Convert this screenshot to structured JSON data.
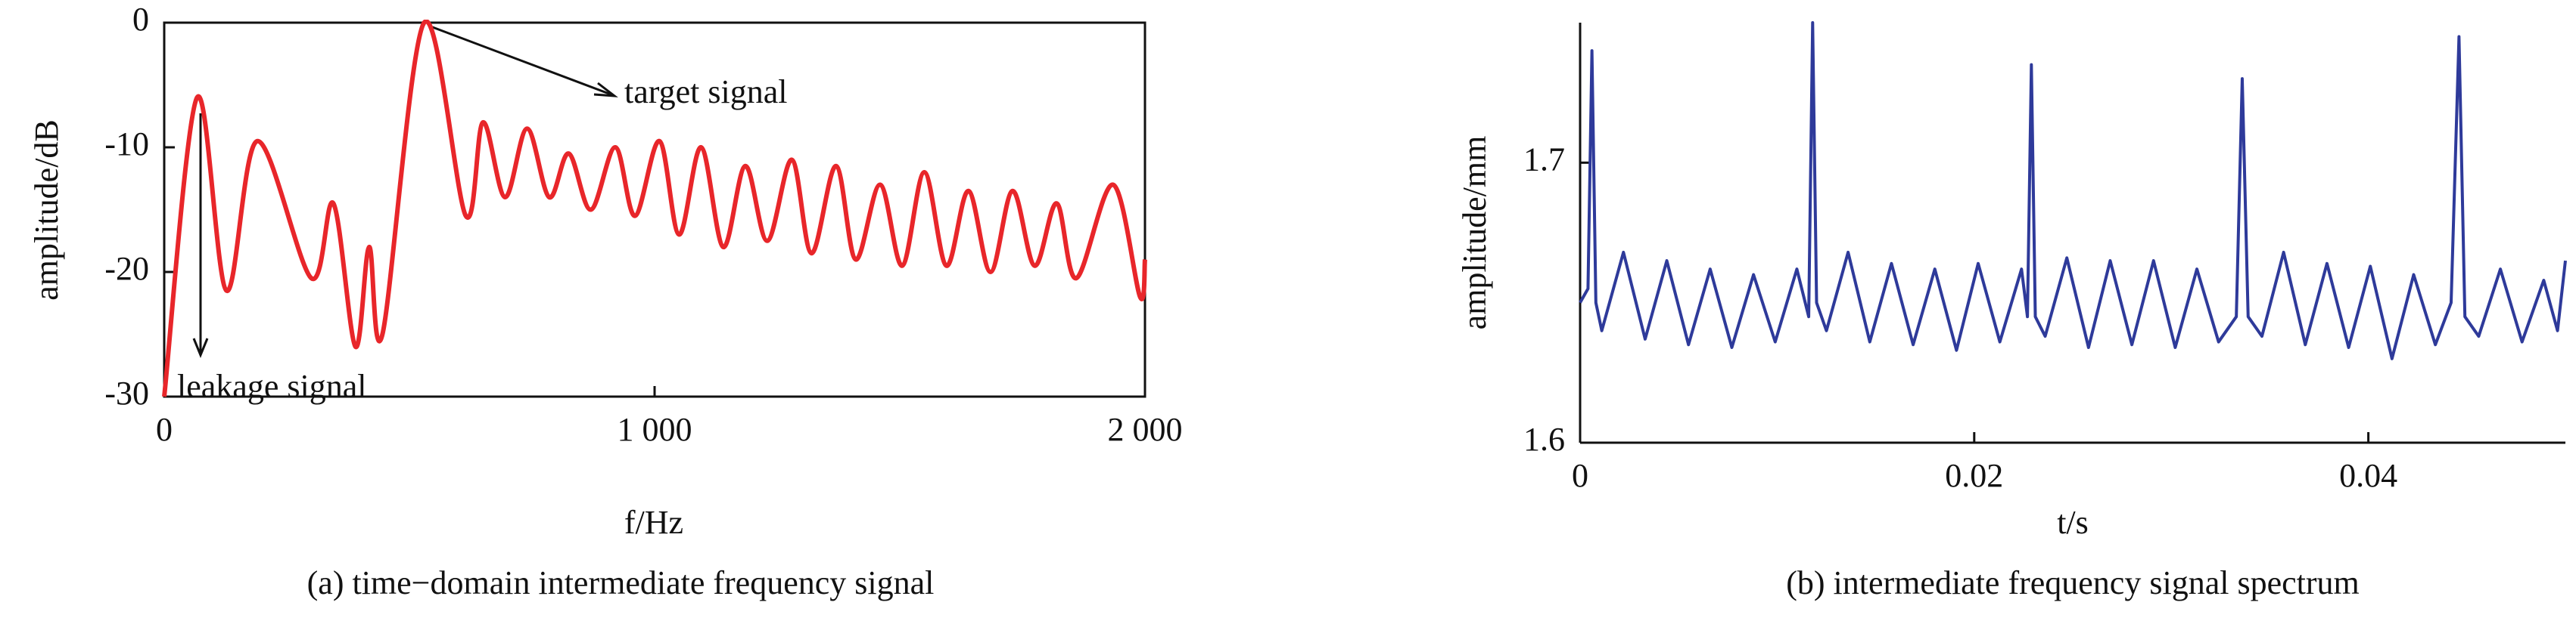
{
  "chart_data": [
    {
      "type": "line",
      "caption": "(a) time−domain intermediate frequency signal",
      "xlabel": "f/Hz",
      "ylabel": "amplitude/dB",
      "annotations": [
        "target signal",
        "leakage signal"
      ],
      "color": "#e8262a",
      "x": [
        0,
        67,
        127,
        190,
        300,
        345,
        390,
        418,
        445,
        530,
        615,
        650,
        695,
        740,
        785,
        825,
        870,
        920,
        960,
        1010,
        1050,
        1095,
        1140,
        1185,
        1230,
        1280,
        1320,
        1370,
        1410,
        1460,
        1505,
        1550,
        1595,
        1640,
        1685,
        1730,
        1775,
        1820,
        1860,
        1935,
        1990,
        2000
      ],
      "values": [
        -30,
        -6,
        -21.5,
        -9.5,
        -20.5,
        -14.5,
        -26,
        -18,
        -25,
        0,
        -15.5,
        -8,
        -14,
        -8.5,
        -14,
        -10.5,
        -15,
        -10,
        -15.5,
        -9.5,
        -17,
        -10,
        -18,
        -11.5,
        -17.5,
        -11,
        -18.5,
        -11.5,
        -19,
        -13,
        -19.5,
        -12,
        -19.5,
        -13.5,
        -20,
        -13.5,
        -19.5,
        -14.5,
        -20.5,
        -13,
        -22,
        -19
      ],
      "xlim": [
        0,
        2000
      ],
      "ylim": [
        -30,
        0
      ],
      "xticks": [
        0,
        {
          "value": 1000,
          "label": "1 000"
        },
        {
          "value": 2000,
          "label": "2 000"
        }
      ],
      "yticks": [
        -30,
        -20,
        -10,
        0
      ]
    },
    {
      "type": "line",
      "caption": "(b) intermediate frequency signal spectrum",
      "xlabel": "t/s",
      "ylabel": "amplitude/mm",
      "color": "#2e3a9a",
      "x": [
        0,
        0.0004,
        0.0006,
        0.0008,
        0.0011,
        0.0022,
        0.0033,
        0.0044,
        0.0055,
        0.0066,
        0.0077,
        0.0088,
        0.0099,
        0.011,
        0.0116,
        0.0118,
        0.012,
        0.0125,
        0.0136,
        0.0147,
        0.0158,
        0.0169,
        0.018,
        0.0191,
        0.0202,
        0.0213,
        0.0224,
        0.0227,
        0.0229,
        0.0231,
        0.0236,
        0.0247,
        0.0258,
        0.0269,
        0.028,
        0.0291,
        0.0302,
        0.0313,
        0.0324,
        0.0333,
        0.0336,
        0.0339,
        0.0346,
        0.0357,
        0.0368,
        0.0379,
        0.039,
        0.0401,
        0.0412,
        0.0423,
        0.0434,
        0.0442,
        0.0446,
        0.0449,
        0.0456,
        0.0467,
        0.0478,
        0.0489,
        0.0496,
        0.05
      ],
      "values": [
        1.65,
        1.655,
        1.74,
        1.65,
        1.64,
        1.668,
        1.637,
        1.665,
        1.635,
        1.662,
        1.634,
        1.66,
        1.636,
        1.662,
        1.645,
        1.75,
        1.65,
        1.64,
        1.668,
        1.636,
        1.664,
        1.635,
        1.662,
        1.633,
        1.664,
        1.636,
        1.662,
        1.645,
        1.735,
        1.645,
        1.638,
        1.666,
        1.634,
        1.665,
        1.635,
        1.665,
        1.634,
        1.662,
        1.636,
        1.645,
        1.73,
        1.645,
        1.638,
        1.668,
        1.635,
        1.664,
        1.634,
        1.663,
        1.63,
        1.66,
        1.635,
        1.65,
        1.745,
        1.645,
        1.638,
        1.662,
        1.636,
        1.658,
        1.64,
        1.665
      ],
      "xlim": [
        0,
        0.05
      ],
      "ylim": [
        1.6,
        1.75
      ],
      "xticks": [
        0,
        0.02,
        0.04
      ],
      "yticks": [
        1.6,
        1.7
      ]
    }
  ]
}
